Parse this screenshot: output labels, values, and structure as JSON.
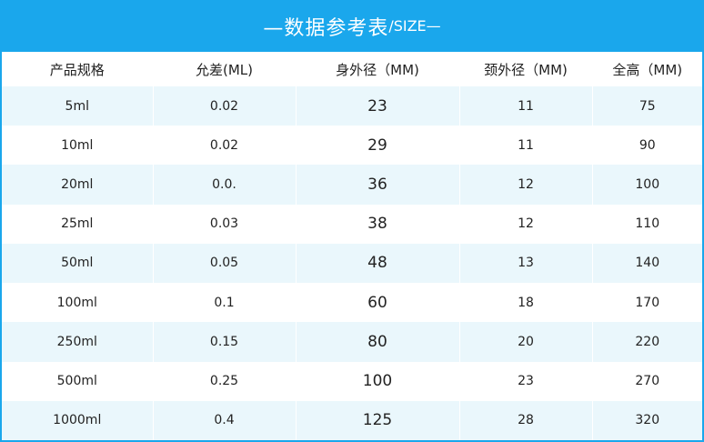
{
  "header": {
    "title": "—数据参考表",
    "subtitle": "/SIZE—"
  },
  "columns": [
    "产品规格",
    "允差(ML)",
    "身外径（MM)",
    "颈外径（MM)",
    "全高（MM)"
  ],
  "rows": [
    [
      "5ml",
      "0.02",
      "23",
      "11",
      "75"
    ],
    [
      "10ml",
      "0.02",
      "29",
      "11",
      "90"
    ],
    [
      "20ml",
      "0.0.",
      "36",
      "12",
      "100"
    ],
    [
      "25ml",
      "0.03",
      "38",
      "12",
      "110"
    ],
    [
      "50ml",
      "0.05",
      "48",
      "13",
      "140"
    ],
    [
      "100ml",
      "0.1",
      "60",
      "18",
      "170"
    ],
    [
      "250ml",
      "0.15",
      "80",
      "20",
      "220"
    ],
    [
      "500ml",
      "0.25",
      "100",
      "23",
      "270"
    ],
    [
      "1000ml",
      "0.4",
      "125",
      "28",
      "320"
    ]
  ],
  "colors": {
    "header_bg": "#1aa7ec",
    "stripe": "#eaf7fc"
  }
}
